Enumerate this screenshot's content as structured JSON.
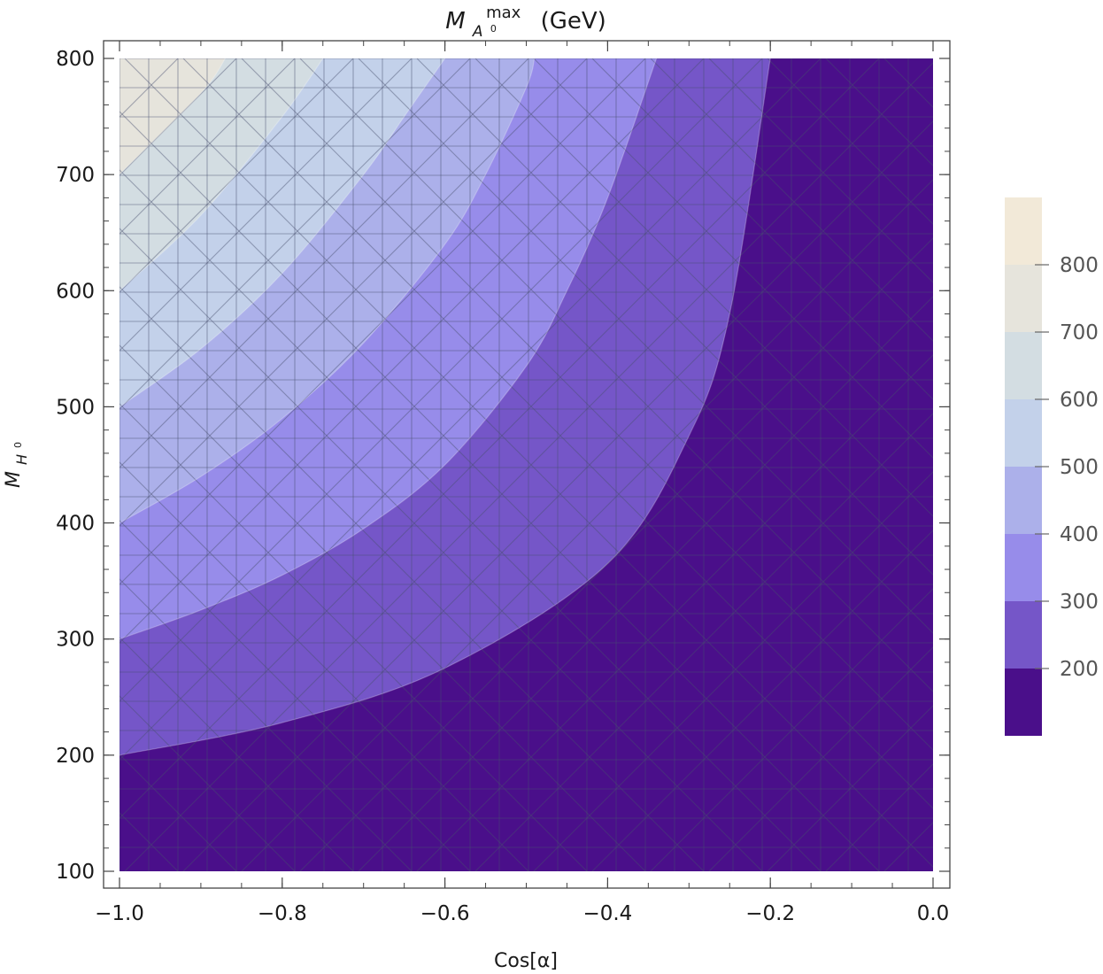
{
  "chart_data": {
    "type": "contour",
    "title": {
      "symbol": "M",
      "superscript": "max",
      "subscript": "A",
      "subscript_sup": "0",
      "units": "(GeV)"
    },
    "xlabel": "Cos[α]",
    "ylabel": {
      "symbol": "M",
      "subscript": "H",
      "subscript_sup": "0"
    },
    "xlim": [
      -1.0,
      0.0
    ],
    "ylim": [
      100,
      800
    ],
    "xticks": [
      -1.0,
      -0.8,
      -0.6,
      -0.4,
      -0.2,
      0.0
    ],
    "xtick_labels": [
      "−1.0",
      "−0.8",
      "−0.6",
      "−0.4",
      "−0.2",
      "0.0"
    ],
    "yticks": [
      100,
      200,
      300,
      400,
      500,
      600,
      700,
      800
    ],
    "ytick_labels": [
      "100",
      "200",
      "300",
      "400",
      "500",
      "600",
      "700",
      "800"
    ],
    "contour_levels": [
      200,
      300,
      400,
      500,
      600,
      700,
      800
    ],
    "level_bands": [
      {
        "range": [
          100,
          200
        ],
        "color": "#4a0f8a"
      },
      {
        "range": [
          200,
          300
        ],
        "color": "#7556c8"
      },
      {
        "range": [
          300,
          400
        ],
        "color": "#978cea"
      },
      {
        "range": [
          400,
          500
        ],
        "color": "#acb0ea"
      },
      {
        "range": [
          500,
          600
        ],
        "color": "#c3d1ea"
      },
      {
        "range": [
          600,
          700
        ],
        "color": "#d3dde2"
      },
      {
        "range": [
          700,
          800
        ],
        "color": "#e6e4dc"
      },
      {
        "range": [
          800,
          900
        ],
        "color": "#f2e9d8"
      }
    ],
    "contours": [
      {
        "level": 200,
        "points": [
          [
            -1.0,
            200
          ],
          [
            -0.8,
            228
          ],
          [
            -0.6,
            275
          ],
          [
            -0.4,
            365
          ],
          [
            -0.3,
            475
          ],
          [
            -0.25,
            580
          ],
          [
            -0.2,
            800
          ]
        ]
      },
      {
        "level": 300,
        "points": [
          [
            -1.0,
            300
          ],
          [
            -0.9,
            325
          ],
          [
            -0.8,
            355
          ],
          [
            -0.7,
            395
          ],
          [
            -0.6,
            450
          ],
          [
            -0.5,
            535
          ],
          [
            -0.45,
            600
          ],
          [
            -0.4,
            680
          ],
          [
            -0.34,
            800
          ]
        ]
      },
      {
        "level": 400,
        "points": [
          [
            -1.0,
            400
          ],
          [
            -0.9,
            440
          ],
          [
            -0.8,
            490
          ],
          [
            -0.7,
            555
          ],
          [
            -0.6,
            640
          ],
          [
            -0.55,
            700
          ],
          [
            -0.5,
            775
          ],
          [
            -0.49,
            800
          ]
        ]
      },
      {
        "level": 500,
        "points": [
          [
            -1.0,
            500
          ],
          [
            -0.9,
            550
          ],
          [
            -0.8,
            615
          ],
          [
            -0.7,
            700
          ],
          [
            -0.65,
            750
          ],
          [
            -0.6,
            800
          ]
        ]
      },
      {
        "level": 600,
        "points": [
          [
            -1.0,
            600
          ],
          [
            -0.9,
            665
          ],
          [
            -0.8,
            750
          ],
          [
            -0.75,
            800
          ]
        ]
      },
      {
        "level": 700,
        "points": [
          [
            -1.0,
            700
          ],
          [
            -0.9,
            770
          ],
          [
            -0.87,
            800
          ]
        ]
      },
      {
        "level": 800,
        "points": [
          [
            -1.0,
            800
          ],
          [
            -0.99,
            800
          ]
        ]
      }
    ],
    "colorbar": {
      "ticks": [
        200,
        300,
        400,
        500,
        600,
        700,
        800
      ],
      "tick_labels": [
        "200",
        "300",
        "400",
        "500",
        "600",
        "700",
        "800"
      ],
      "range": [
        100,
        900
      ],
      "placement": "right"
    },
    "grid": true,
    "mesh_overlay": true
  }
}
